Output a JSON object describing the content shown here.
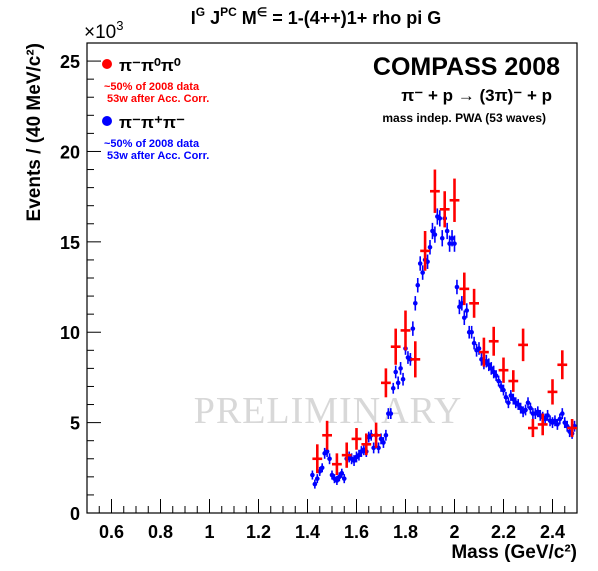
{
  "title_parts": {
    "i": "I",
    "g": "G",
    "j": " J",
    "pc": "PC",
    "m": " M",
    "eps": "∈",
    "rest": " = 1-(4++)1+ rho pi G"
  },
  "exponent": {
    "prefix": "×10",
    "power": "3"
  },
  "experiment": "COMPASS 2008",
  "reaction": "π⁻ + p → (3π)⁻ + p",
  "method": "mass indep. PWA (53 waves)",
  "watermark": "PRELIMINARY",
  "legend": [
    {
      "symbol_color": "#ff0000",
      "label": "π⁻π⁰π⁰",
      "note1": "~50% of 2008 data",
      "note2": "53w after Acc. Corr."
    },
    {
      "symbol_color": "#0000ff",
      "label": "π⁻π⁺π⁻",
      "note1": "~50% of 2008 data",
      "note2": "53w after Acc. Corr."
    }
  ],
  "chart_data": {
    "type": "scatter",
    "title": "I^G J^PC M^∈ = 1-(4++)1+ rho pi G",
    "xlabel": "Mass (GeV/c²)",
    "ylabel": "Events / (40 MeV/c²)",
    "y_multiplier": "×10³",
    "xlim": [
      0.5,
      2.5
    ],
    "ylim": [
      0,
      26
    ],
    "xticks": [
      "0.6",
      "0.8",
      "1",
      "1.2",
      "1.4",
      "1.6",
      "1.8",
      "2",
      "2.2",
      "2.4"
    ],
    "yticks": [
      "0",
      "5",
      "10",
      "15",
      "20",
      "25"
    ],
    "grid": false,
    "series": [
      {
        "name": "π⁻π⁰π⁰",
        "color": "#ff0000",
        "x": [
          1.44,
          1.48,
          1.52,
          1.56,
          1.6,
          1.64,
          1.68,
          1.72,
          1.76,
          1.8,
          1.84,
          1.88,
          1.92,
          1.96,
          2.0,
          2.04,
          2.08,
          2.12,
          2.16,
          2.2,
          2.24,
          2.28,
          2.32,
          2.36,
          2.4,
          2.44,
          2.48
        ],
        "y": [
          3.0,
          4.3,
          2.7,
          3.2,
          4.1,
          3.8,
          4.3,
          7.2,
          9.2,
          10.1,
          8.5,
          14.5,
          17.8,
          16.8,
          17.3,
          12.4,
          11.6,
          8.9,
          9.5,
          7.9,
          7.3,
          9.3,
          4.7,
          4.9,
          6.7,
          8.2,
          4.7
        ],
        "err": [
          0.8,
          0.8,
          0.6,
          0.7,
          0.6,
          0.6,
          0.7,
          0.8,
          1.0,
          1.1,
          1.0,
          1.1,
          1.2,
          1.0,
          1.2,
          0.9,
          0.8,
          0.8,
          0.8,
          0.7,
          0.6,
          0.9,
          0.5,
          0.6,
          0.7,
          0.8,
          0.5
        ]
      },
      {
        "name": "π⁻π⁺π⁻",
        "color": "#0000ff",
        "x": [
          1.42,
          1.43,
          1.44,
          1.45,
          1.46,
          1.47,
          1.48,
          1.49,
          1.5,
          1.51,
          1.52,
          1.53,
          1.54,
          1.55,
          1.56,
          1.57,
          1.58,
          1.59,
          1.6,
          1.61,
          1.62,
          1.63,
          1.64,
          1.65,
          1.66,
          1.67,
          1.68,
          1.69,
          1.7,
          1.71,
          1.72,
          1.73,
          1.74,
          1.75,
          1.76,
          1.77,
          1.78,
          1.79,
          1.8,
          1.81,
          1.82,
          1.83,
          1.84,
          1.85,
          1.86,
          1.87,
          1.88,
          1.89,
          1.9,
          1.91,
          1.92,
          1.93,
          1.94,
          1.95,
          1.96,
          1.97,
          1.98,
          1.99,
          2.0,
          2.01,
          2.02,
          2.03,
          2.04,
          2.05,
          2.06,
          2.07,
          2.08,
          2.09,
          2.1,
          2.11,
          2.12,
          2.13,
          2.14,
          2.15,
          2.16,
          2.17,
          2.18,
          2.19,
          2.2,
          2.21,
          2.22,
          2.23,
          2.24,
          2.25,
          2.26,
          2.27,
          2.28,
          2.29,
          2.3,
          2.31,
          2.32,
          2.33,
          2.34,
          2.35,
          2.36,
          2.37,
          2.38,
          2.39,
          2.4,
          2.41,
          2.42,
          2.43,
          2.44,
          2.45,
          2.46,
          2.47,
          2.48,
          2.49
        ],
        "y": [
          2.1,
          1.6,
          1.9,
          2.3,
          2.5,
          3.3,
          3.4,
          3.0,
          2.1,
          1.9,
          1.8,
          2.0,
          2.2,
          1.9,
          3.0,
          3.1,
          3.0,
          2.9,
          3.1,
          3.2,
          3.4,
          3.5,
          3.4,
          4.2,
          4.3,
          3.6,
          4.3,
          3.6,
          4.1,
          3.9,
          4.3,
          5.5,
          5.5,
          6.9,
          7.8,
          7.2,
          8.0,
          7.4,
          9.1,
          8.6,
          8.5,
          10.2,
          11.6,
          12.6,
          13.8,
          13.3,
          14.0,
          13.9,
          14.7,
          15.6,
          15.4,
          16.4,
          16.3,
          15.2,
          16.3,
          15.6,
          14.9,
          15.2,
          14.9,
          12.5,
          11.4,
          11.6,
          10.8,
          11.2,
          10.0,
          10.0,
          9.4,
          9.0,
          9.1,
          8.5,
          8.3,
          8.4,
          8.2,
          8.0,
          7.8,
          7.6,
          7.3,
          7.0,
          6.8,
          6.4,
          6.1,
          6.5,
          6.3,
          6.1,
          6.0,
          5.8,
          5.6,
          5.7,
          6.1,
          5.8,
          5.5,
          5.5,
          5.6,
          5.4,
          5.3,
          5.2,
          5.4,
          5.1,
          5.0,
          5.1,
          4.9,
          5.2,
          5.5,
          5.0,
          4.8,
          4.5,
          4.4,
          4.8
        ],
        "err": [
          0.25,
          0.25,
          0.25,
          0.25,
          0.25,
          0.3,
          0.3,
          0.3,
          0.25,
          0.25,
          0.25,
          0.25,
          0.25,
          0.25,
          0.3,
          0.3,
          0.3,
          0.3,
          0.3,
          0.3,
          0.3,
          0.3,
          0.3,
          0.3,
          0.3,
          0.3,
          0.3,
          0.3,
          0.3,
          0.3,
          0.3,
          0.3,
          0.3,
          0.3,
          0.35,
          0.35,
          0.35,
          0.35,
          0.35,
          0.35,
          0.35,
          0.4,
          0.4,
          0.4,
          0.4,
          0.4,
          0.4,
          0.4,
          0.4,
          0.45,
          0.45,
          0.45,
          0.45,
          0.45,
          0.45,
          0.45,
          0.45,
          0.45,
          0.45,
          0.4,
          0.4,
          0.4,
          0.4,
          0.4,
          0.35,
          0.35,
          0.35,
          0.35,
          0.35,
          0.35,
          0.35,
          0.35,
          0.35,
          0.35,
          0.35,
          0.3,
          0.3,
          0.3,
          0.3,
          0.3,
          0.3,
          0.3,
          0.3,
          0.3,
          0.3,
          0.3,
          0.3,
          0.3,
          0.3,
          0.3,
          0.3,
          0.3,
          0.3,
          0.3,
          0.3,
          0.3,
          0.3,
          0.3,
          0.3,
          0.3,
          0.3,
          0.3,
          0.3,
          0.3,
          0.3,
          0.3,
          0.3,
          0.3
        ]
      }
    ]
  }
}
